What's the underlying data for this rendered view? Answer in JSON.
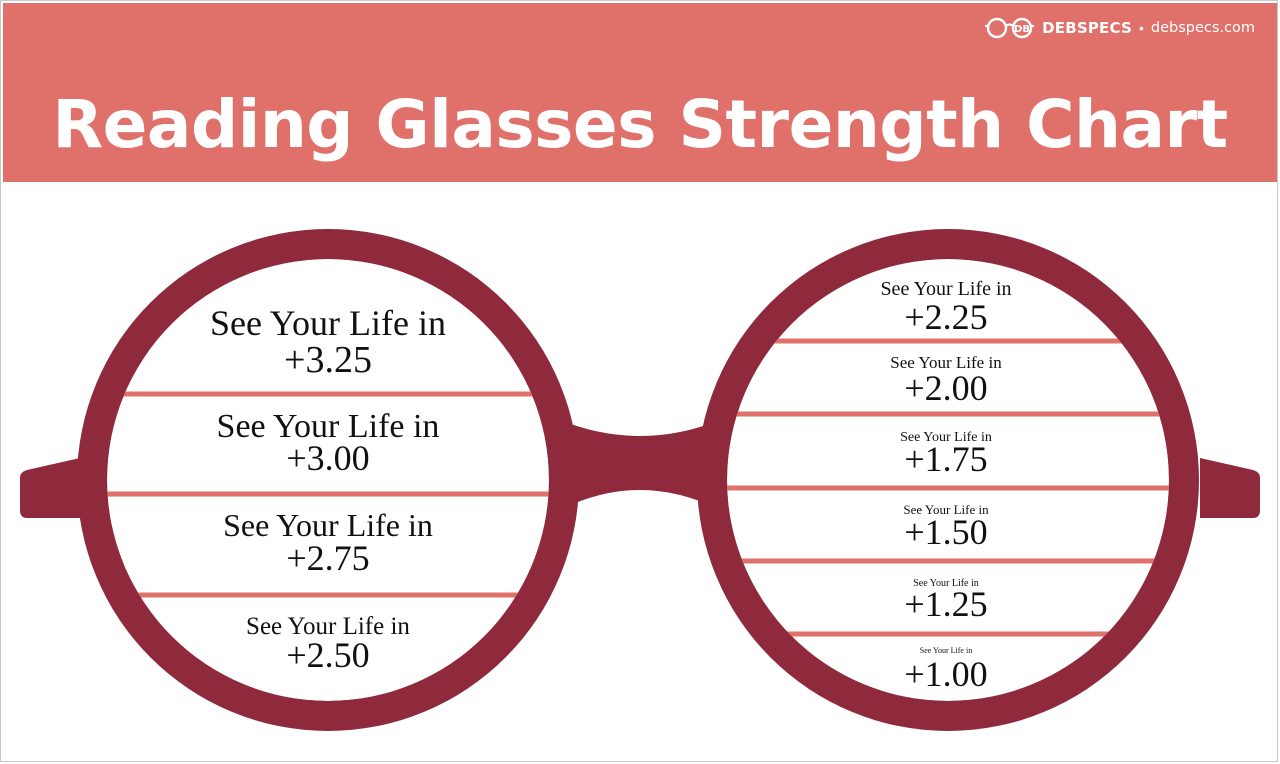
{
  "brand": {
    "name": "DEBSPECS",
    "separator": "•",
    "url": "debspecs.com",
    "logo_icon": "glasses-db-logo-icon"
  },
  "title": "Reading Glasses Strength Chart",
  "colors": {
    "header_background": "#e0716a",
    "frame_color": "#8e2a3c",
    "divider_color": "#e0716a",
    "text_color": "#111111"
  },
  "left_lens": {
    "rows": [
      {
        "caption": "See Your Life in",
        "strength": "+3.25"
      },
      {
        "caption": "See Your Life in",
        "strength": "+3.00"
      },
      {
        "caption": "See Your Life in",
        "strength": "+2.75"
      },
      {
        "caption": "See Your Life in",
        "strength": "+2.50"
      }
    ]
  },
  "right_lens": {
    "rows": [
      {
        "caption": "See Your Life in",
        "strength": "+2.25"
      },
      {
        "caption": "See Your Life in",
        "strength": "+2.00"
      },
      {
        "caption": "See Your Life in",
        "strength": "+1.75"
      },
      {
        "caption": "See Your Life in",
        "strength": "+1.50"
      },
      {
        "caption": "See Your Life in",
        "strength": "+1.25"
      },
      {
        "caption": "See Your Life in",
        "strength": "+1.00"
      }
    ]
  }
}
